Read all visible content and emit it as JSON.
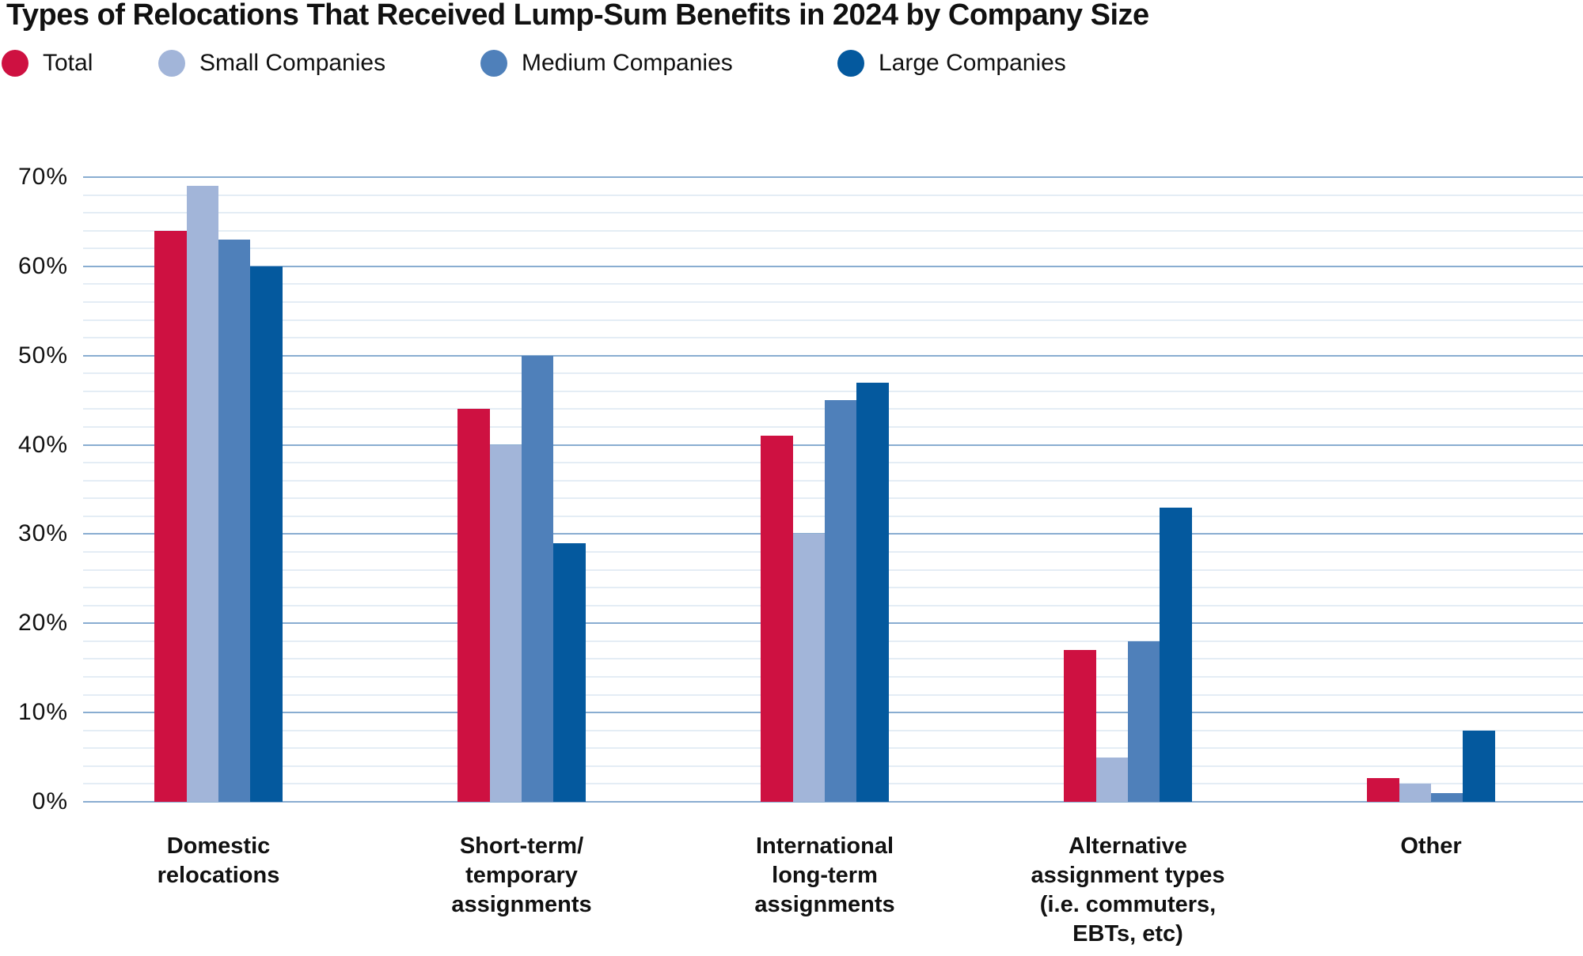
{
  "title": "Types of Relocations That Received Lump-Sum Benefits in 2024 by Company Size",
  "colors": {
    "total": "#CE1141",
    "small_companies": "#A2B5D9",
    "medium_companies": "#4F80BA",
    "large_companies": "#04599E",
    "grid_major": "#89ADD1",
    "grid_minor": "#E4EDF5",
    "text": "#111111"
  },
  "chart_data": {
    "type": "bar",
    "title": "Types of Relocations That Received Lump-Sum Benefits in 2024 by Company Size",
    "categories": [
      "Domestic relocations",
      "Short-term/temporary assignments",
      "International long-term assignments",
      "Alternative assignment types (i.e. commuters, EBTs, etc)",
      "Other"
    ],
    "category_label_lines": [
      [
        "Domestic",
        "relocations"
      ],
      [
        "Short-term/",
        "temporary",
        "assignments"
      ],
      [
        "International",
        "long-term",
        "assignments"
      ],
      [
        "Alternative",
        "assignment types",
        "(i.e. commuters,",
        "EBTs, etc)"
      ],
      [
        "Other"
      ]
    ],
    "series": [
      {
        "name": "Total",
        "color": "#CE1141",
        "values": [
          64,
          44,
          41,
          17,
          2.7
        ]
      },
      {
        "name": "Small Companies",
        "color": "#A2B5D9",
        "values": [
          69,
          40,
          30,
          5,
          2
        ]
      },
      {
        "name": "Medium Companies",
        "color": "#4F80BA",
        "values": [
          63,
          50,
          45,
          18,
          1
        ]
      },
      {
        "name": "Large Companies",
        "color": "#04599E",
        "values": [
          60,
          29,
          47,
          33,
          8
        ]
      }
    ],
    "xlabel": "",
    "ylabel": "",
    "y_tick_labels": [
      "0%",
      "10%",
      "20%",
      "30%",
      "40%",
      "50%",
      "60%",
      "70%"
    ],
    "ylim": [
      0,
      70
    ],
    "grid": {
      "visible": true,
      "minor_step": 2,
      "major_step": 10,
      "minor_color": "#E4EDF5",
      "major_color": "#89ADD1"
    },
    "legend_position": "top-left"
  }
}
